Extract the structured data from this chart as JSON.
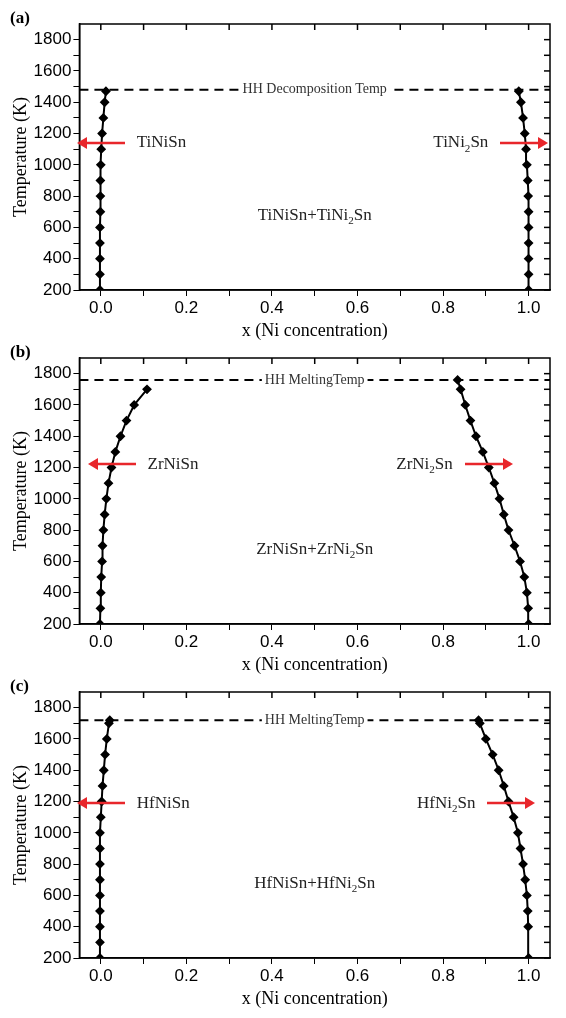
{
  "chart_data": [
    {
      "type": "line",
      "title": "(a)",
      "xlabel": "x (Ni concentration)",
      "ylabel": "Temperature (K)",
      "xlim": [
        -0.05,
        1.05
      ],
      "ylim": [
        200,
        1900
      ],
      "xticks": [
        {
          "value": 0,
          "label": "0.0"
        },
        {
          "value": 0.1,
          "label": null
        },
        0.2,
        {
          "value": 0.3,
          "label": null
        },
        0.4,
        {
          "value": 0.5,
          "label": null
        },
        0.6,
        {
          "value": 0.7,
          "label": null
        },
        0.8,
        {
          "value": 0.9,
          "label": null
        },
        {
          "value": 1,
          "label": "1.0"
        }
      ],
      "yticks": [
        200,
        {
          "value": 300,
          "label": null
        },
        400,
        {
          "value": 500,
          "label": null
        },
        600,
        {
          "value": 700,
          "label": null
        },
        800,
        {
          "value": 900,
          "label": null
        },
        1000,
        {
          "value": 1100,
          "label": null
        },
        1200,
        {
          "value": 1300,
          "label": null
        },
        1400,
        {
          "value": 1500,
          "label": null
        },
        1600,
        {
          "value": 1700,
          "label": null
        },
        1800
      ],
      "grid": false,
      "legend": false,
      "marker": "diamond",
      "series": [
        {
          "color": "#000000",
          "x": [
            -0.002,
            -0.002,
            -0.002,
            -0.002,
            -0.002,
            -0.001,
            -0.001,
            -0.001,
            0,
            0.001,
            0.003,
            0.006,
            0.009,
            0.012
          ],
          "values": [
            200,
            300,
            400,
            500,
            600,
            700,
            800,
            900,
            1000,
            1100,
            1200,
            1300,
            1400,
            1470
          ]
        },
        {
          "color": "#000000",
          "x": [
            1,
            1,
            1,
            1,
            1,
            1,
            0.999,
            0.998,
            0.996,
            0.994,
            0.991,
            0.987,
            0.982,
            0.977
          ],
          "values": [
            200,
            300,
            400,
            500,
            600,
            700,
            800,
            900,
            1000,
            1100,
            1200,
            1300,
            1400,
            1470
          ]
        }
      ],
      "ref_lines": [
        {
          "axis": "y",
          "value": 1480,
          "label": "HH Decomposition Temp",
          "line_style": "dashed",
          "color": "#000000"
        }
      ],
      "annotations": [
        {
          "text": "TiNiSn",
          "x": 0,
          "y": 1140
        },
        {
          "text": "TiNi$_{2}$Sn",
          "x": 0.99,
          "y": 1140
        },
        "TiNiSn+TiNi$_{2}$Sn"
      ]
    },
    {
      "type": "line",
      "title": "(b)",
      "xlabel": "x (Ni concentration)",
      "ylabel": "Temperature (K)",
      "xlim": [
        -0.05,
        1.05
      ],
      "ylim": [
        200,
        1900
      ],
      "xticks": [
        {
          "value": 0,
          "label": "0.0"
        },
        {
          "value": 0.1,
          "label": null
        },
        0.2,
        {
          "value": 0.3,
          "label": null
        },
        0.4,
        {
          "value": 0.5,
          "label": null
        },
        0.6,
        {
          "value": 0.7,
          "label": null
        },
        0.8,
        {
          "value": 0.9,
          "label": null
        },
        {
          "value": 1,
          "label": "1.0"
        }
      ],
      "yticks": [
        200,
        {
          "value": 300,
          "label": null
        },
        400,
        {
          "value": 500,
          "label": null
        },
        600,
        {
          "value": 700,
          "label": null
        },
        800,
        {
          "value": 900,
          "label": null
        },
        1000,
        {
          "value": 1100,
          "label": null
        },
        1200,
        {
          "value": 1300,
          "label": null
        },
        1400,
        {
          "value": 1500,
          "label": null
        },
        1600,
        {
          "value": 1700,
          "label": null
        },
        1800
      ],
      "grid": false,
      "legend": false,
      "marker": "diamond",
      "series": [
        {
          "color": "#000000",
          "x": [
            -0.002,
            -0.001,
            0,
            0.001,
            0.003,
            0.004,
            0.006,
            0.009,
            0.013,
            0.018,
            0.025,
            0.034,
            0.046,
            0.06,
            0.078,
            0.108
          ],
          "values": [
            200,
            300,
            400,
            500,
            600,
            700,
            800,
            900,
            1000,
            1100,
            1200,
            1300,
            1400,
            1500,
            1600,
            1700
          ]
        },
        {
          "color": "#000000",
          "x": [
            1,
            0.999,
            0.996,
            0.99,
            0.98,
            0.967,
            0.953,
            0.942,
            0.932,
            0.92,
            0.907,
            0.893,
            0.877,
            0.864,
            0.852,
            0.841,
            0.834
          ],
          "values": [
            200,
            300,
            400,
            500,
            600,
            700,
            800,
            900,
            1000,
            1100,
            1200,
            1300,
            1400,
            1500,
            1600,
            1700,
            1760
          ]
        }
      ],
      "ref_lines": [
        {
          "axis": "y",
          "value": 1760,
          "label": "HH MeltingTemp",
          "line_style": "dashed",
          "color": "#000000"
        }
      ],
      "annotations": [
        {
          "text": "ZrNiSn",
          "x": 0.025,
          "y": 1220
        },
        {
          "text": "ZrNi$_{2}$Sn",
          "x": 0.907,
          "y": 1220
        },
        "ZrNiSn+ZrNi$_{2}$Sn"
      ]
    },
    {
      "type": "line",
      "title": "(c)",
      "xlabel": "x (Ni concentration)",
      "ylabel": "Temperature (K)",
      "xlim": [
        -0.05,
        1.05
      ],
      "ylim": [
        200,
        1900
      ],
      "xticks": [
        {
          "value": 0,
          "label": "0.0"
        },
        {
          "value": 0.1,
          "label": null
        },
        0.2,
        {
          "value": 0.3,
          "label": null
        },
        0.4,
        {
          "value": 0.5,
          "label": null
        },
        0.6,
        {
          "value": 0.7,
          "label": null
        },
        0.8,
        {
          "value": 0.9,
          "label": null
        },
        {
          "value": 1,
          "label": "1.0"
        }
      ],
      "yticks": [
        200,
        {
          "value": 300,
          "label": null
        },
        400,
        {
          "value": 500,
          "label": null
        },
        600,
        {
          "value": 700,
          "label": null
        },
        800,
        {
          "value": 900,
          "label": null
        },
        1000,
        {
          "value": 1100,
          "label": null
        },
        1200,
        {
          "value": 1300,
          "label": null
        },
        1400,
        {
          "value": 1500,
          "label": null
        },
        1600,
        {
          "value": 1700,
          "label": null
        },
        1800
      ],
      "grid": false,
      "legend": false,
      "marker": "diamond",
      "series": [
        {
          "color": "#000000",
          "x": [
            -0.002,
            -0.002,
            -0.002,
            -0.002,
            -0.002,
            -0.002,
            -0.002,
            -0.002,
            -0.002,
            0,
            0.002,
            0.004,
            0.007,
            0.01,
            0.014,
            0.019,
            0.021
          ],
          "values": [
            200,
            300,
            400,
            500,
            600,
            700,
            800,
            900,
            1000,
            1100,
            1200,
            1300,
            1400,
            1500,
            1600,
            1700,
            1720
          ]
        },
        {
          "color": "#000000",
          "x": [
            1,
            0.999,
            0.998,
            0.996,
            0.992,
            0.987,
            0.981,
            0.975,
            0.965,
            0.953,
            0.942,
            0.93,
            0.916,
            0.9,
            0.886,
            0.883
          ],
          "values": [
            200,
            400,
            500,
            600,
            700,
            800,
            900,
            1000,
            1100,
            1200,
            1300,
            1400,
            1500,
            1600,
            1700,
            1720
          ]
        }
      ],
      "ref_lines": [
        {
          "axis": "y",
          "value": 1720,
          "label": "HH MeltingTemp",
          "line_style": "dashed",
          "color": "#000000"
        }
      ],
      "annotations": [
        {
          "text": "HfNiSn",
          "x": 0,
          "y": 1190
        },
        {
          "text": "HfNi$_{2}$Sn",
          "x": 0.96,
          "y": 1190
        },
        "HfNiSn+HfNi$_{2}$Sn"
      ]
    }
  ]
}
